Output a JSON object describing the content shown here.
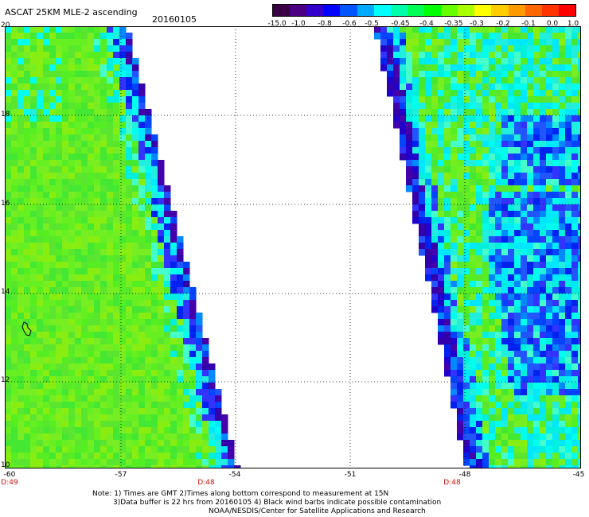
{
  "header": {
    "title": "ASCAT 25KM MLE-2 ascending",
    "date": "20160105"
  },
  "colorbar": {
    "labels": [
      "-15.0",
      "-1.0",
      "-0.8",
      "-0.6",
      "-0.5",
      "-0.45",
      "-0.4",
      "-0.35",
      "-0.3",
      "-0.2",
      "-0.1",
      "0.0",
      "1.0"
    ],
    "colors": [
      "#3a0046",
      "#4b0082",
      "#3300cc",
      "#0000ff",
      "#0055ff",
      "#00aaff",
      "#00ffff",
      "#00ffaa",
      "#00ff55",
      "#00ff00",
      "#66ff00",
      "#aaff00",
      "#ffff00",
      "#ffcc00",
      "#ff9900",
      "#ff6600",
      "#ff3300",
      "#ff0000"
    ]
  },
  "map": {
    "lon_labels": [
      "-60",
      "-57",
      "-54",
      "-51",
      "-48",
      "-45"
    ],
    "lat_labels": [
      "20",
      "18",
      "16",
      "14",
      "12",
      "10"
    ],
    "swath_times": [
      "D:49",
      "D:48",
      "D:48"
    ],
    "land_color": "#00ff00"
  },
  "notes": {
    "line1": "Note: 1) Times are GMT 2)Times along bottom correspond to measurement at 15N",
    "line2": "3)Data buffer is 22 hrs from 20160105 4) Black wind barbs indicate possible contamination",
    "line3": "NOAA/NESDIS/Center for Satellite Applications and Research"
  }
}
